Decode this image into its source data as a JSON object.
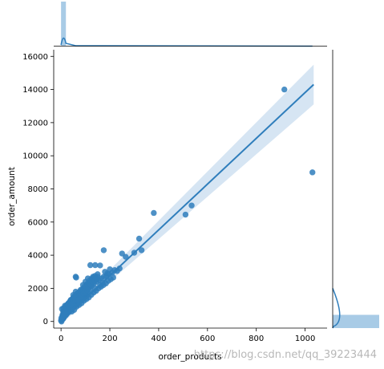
{
  "chart_data": {
    "type": "scatter",
    "subtype": "jointplot-with-regression",
    "xlabel": "order_products",
    "ylabel": "order_amount",
    "xlim": [
      -30,
      1090
    ],
    "ylim": [
      -400,
      16400
    ],
    "x_ticks": [
      0,
      200,
      400,
      600,
      800,
      1000
    ],
    "y_ticks": [
      0,
      2000,
      4000,
      6000,
      8000,
      10000,
      12000,
      14000,
      16000
    ],
    "grid": false,
    "point_color": "#2f7ebc",
    "line_color": "#2f7ebc",
    "band_color": "#cfe0f1",
    "marginal_color": "#9fc5e3",
    "regression": {
      "x_start": 0,
      "y_start": 0,
      "x_end": 1035,
      "y_end": 14300,
      "ci_lower_end": 13100,
      "ci_upper_end": 15500
    },
    "points": [
      [
        915,
        14000
      ],
      [
        1030,
        9000
      ],
      [
        535,
        7000
      ],
      [
        380,
        6550
      ],
      [
        510,
        6450
      ],
      [
        320,
        5000
      ],
      [
        175,
        4300
      ],
      [
        250,
        4100
      ],
      [
        265,
        3900
      ],
      [
        300,
        4150
      ],
      [
        330,
        4300
      ],
      [
        160,
        3380
      ],
      [
        140,
        3400
      ],
      [
        120,
        3400
      ],
      [
        200,
        3150
      ],
      [
        180,
        3000
      ],
      [
        150,
        2850
      ],
      [
        220,
        3100
      ],
      [
        110,
        2600
      ],
      [
        100,
        2400
      ],
      [
        130,
        2550
      ],
      [
        90,
        2200
      ],
      [
        80,
        1900
      ],
      [
        60,
        1800
      ],
      [
        50,
        1600
      ],
      [
        70,
        1700
      ],
      [
        40,
        1300
      ],
      [
        30,
        1100
      ],
      [
        20,
        900
      ],
      [
        10,
        800
      ],
      [
        5,
        300
      ],
      [
        15,
        500
      ],
      [
        25,
        700
      ],
      [
        35,
        950
      ],
      [
        45,
        1050
      ],
      [
        55,
        1200
      ],
      [
        65,
        1400
      ],
      [
        75,
        1550
      ],
      [
        85,
        1650
      ],
      [
        95,
        1800
      ],
      [
        105,
        1950
      ],
      [
        115,
        2050
      ],
      [
        125,
        2150
      ],
      [
        135,
        2300
      ],
      [
        145,
        2400
      ],
      [
        155,
        2500
      ],
      [
        165,
        2600
      ],
      [
        175,
        2700
      ],
      [
        185,
        2750
      ],
      [
        195,
        2850
      ],
      [
        210,
        2950
      ],
      [
        230,
        3050
      ],
      [
        240,
        3200
      ],
      [
        170,
        2350
      ],
      [
        160,
        2200
      ],
      [
        140,
        2000
      ],
      [
        120,
        1900
      ],
      [
        110,
        1750
      ],
      [
        100,
        1650
      ],
      [
        90,
        1500
      ],
      [
        80,
        1400
      ],
      [
        70,
        1250
      ],
      [
        60,
        1100
      ],
      [
        50,
        950
      ],
      [
        40,
        800
      ],
      [
        30,
        650
      ],
      [
        20,
        450
      ],
      [
        10,
        200
      ],
      [
        3,
        100
      ],
      [
        8,
        150
      ],
      [
        12,
        250
      ],
      [
        18,
        350
      ],
      [
        22,
        420
      ],
      [
        28,
        520
      ],
      [
        33,
        600
      ],
      [
        38,
        680
      ],
      [
        42,
        720
      ],
      [
        48,
        820
      ],
      [
        52,
        880
      ],
      [
        58,
        960
      ],
      [
        62,
        1020
      ],
      [
        68,
        1080
      ],
      [
        72,
        1150
      ],
      [
        78,
        1230
      ],
      [
        82,
        1290
      ],
      [
        88,
        1350
      ],
      [
        92,
        1420
      ],
      [
        98,
        1480
      ],
      [
        102,
        1540
      ],
      [
        108,
        1600
      ],
      [
        0,
        50
      ],
      [
        2,
        0
      ],
      [
        6,
        400
      ],
      [
        14,
        650
      ],
      [
        26,
        850
      ],
      [
        36,
        1200
      ],
      [
        46,
        1350
      ],
      [
        56,
        1500
      ],
      [
        66,
        1650
      ],
      [
        76,
        1800
      ],
      [
        86,
        1950
      ],
      [
        96,
        2100
      ],
      [
        106,
        2250
      ],
      [
        126,
        2450
      ],
      [
        136,
        2650
      ],
      [
        4,
        750
      ],
      [
        9,
        600
      ],
      [
        16,
        950
      ],
      [
        24,
        1000
      ],
      [
        34,
        1100
      ],
      [
        44,
        600
      ],
      [
        54,
        700
      ],
      [
        64,
        900
      ],
      [
        74,
        1000
      ],
      [
        84,
        1100
      ],
      [
        94,
        1250
      ],
      [
        104,
        1350
      ],
      [
        114,
        1450
      ],
      [
        124,
        1600
      ],
      [
        134,
        1750
      ],
      [
        144,
        1850
      ],
      [
        154,
        2000
      ],
      [
        164,
        2100
      ],
      [
        174,
        2200
      ],
      [
        184,
        2300
      ],
      [
        194,
        2450
      ],
      [
        204,
        2550
      ],
      [
        214,
        2650
      ],
      [
        190,
        2900
      ],
      [
        150,
        2700
      ],
      [
        128,
        2300
      ],
      [
        118,
        2150
      ],
      [
        112,
        2300
      ],
      [
        96,
        2000
      ],
      [
        86,
        1750
      ],
      [
        66,
        1500
      ],
      [
        56,
        1350
      ],
      [
        46,
        1200
      ],
      [
        36,
        1000
      ],
      [
        26,
        800
      ],
      [
        11,
        550
      ],
      [
        7,
        350
      ],
      [
        1,
        200
      ],
      [
        13,
        400
      ],
      [
        17,
        600
      ],
      [
        19,
        750
      ],
      [
        21,
        850
      ],
      [
        23,
        950
      ],
      [
        27,
        1000
      ],
      [
        29,
        1050
      ],
      [
        31,
        900
      ],
      [
        37,
        1150
      ],
      [
        39,
        1250
      ],
      [
        41,
        1000
      ],
      [
        43,
        1300
      ],
      [
        47,
        1100
      ],
      [
        49,
        1400
      ],
      [
        51,
        1250
      ],
      [
        53,
        1450
      ],
      [
        57,
        1550
      ],
      [
        59,
        1300
      ],
      [
        61,
        1600
      ],
      [
        63,
        1450
      ],
      [
        67,
        1700
      ],
      [
        69,
        1550
      ],
      [
        71,
        1450
      ],
      [
        73,
        1350
      ],
      [
        77,
        1600
      ],
      [
        79,
        1650
      ],
      [
        81,
        1500
      ],
      [
        83,
        1750
      ],
      [
        87,
        1600
      ],
      [
        89,
        1850
      ],
      [
        91,
        1700
      ],
      [
        93,
        1900
      ],
      [
        97,
        1750
      ],
      [
        99,
        2000
      ],
      [
        101,
        1850
      ],
      [
        103,
        2100
      ],
      [
        107,
        1900
      ],
      [
        109,
        2200
      ],
      [
        111,
        2000
      ],
      [
        113,
        2350
      ],
      [
        117,
        2250
      ],
      [
        119,
        2500
      ],
      [
        121,
        2350
      ],
      [
        123,
        2200
      ],
      [
        127,
        2600
      ],
      [
        129,
        2400
      ],
      [
        131,
        2700
      ],
      [
        133,
        2550
      ],
      [
        137,
        2450
      ],
      [
        139,
        2750
      ],
      [
        143,
        2600
      ],
      [
        147,
        2550
      ],
      [
        60,
        2700
      ],
      [
        62,
        2650
      ]
    ]
  },
  "watermark_text": "https://blog.csdn.net/qq_39223444"
}
